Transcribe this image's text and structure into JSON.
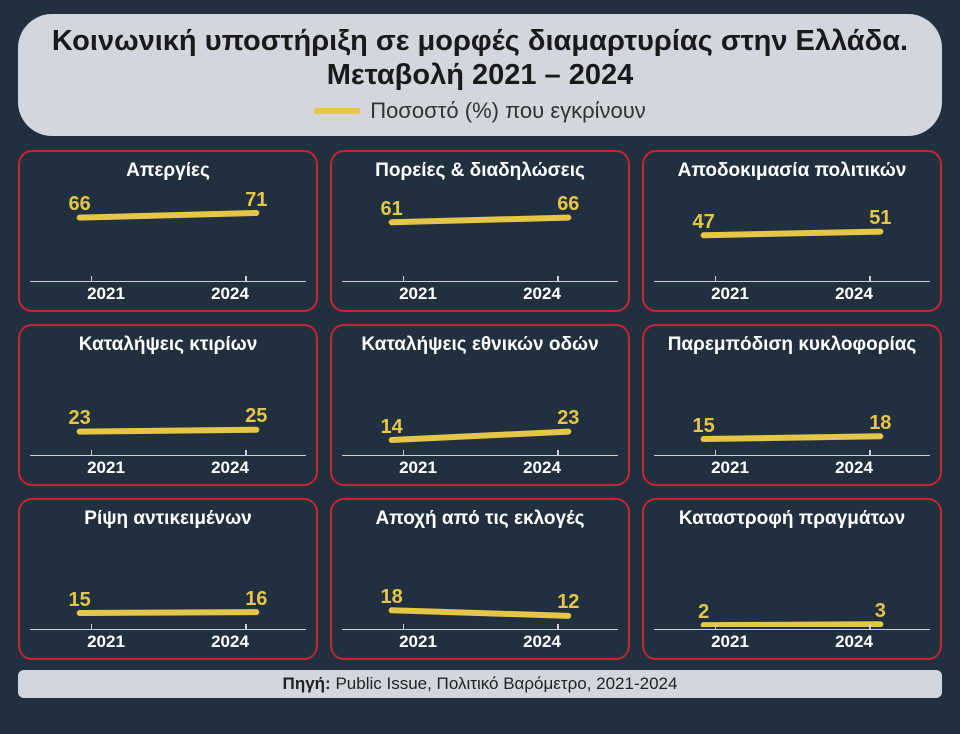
{
  "background_color": "#21303f",
  "title": "Κοινωνική υποστήριξη σε μορφές διαμαρτυρίας στην Ελλάδα. Μεταβολή 2021 – 2024",
  "title_fontsize": 29,
  "title_color": "#1a1a1a",
  "header_pill_bg": "#d4d6dd",
  "legend_label": "Ποσοστό (%) που εγκρίνουν",
  "legend_fontsize": 22,
  "line_color": "#e6c647",
  "line_width": 6,
  "panel_border_color": "#c1272d",
  "panel_border_radius": 14,
  "panel_title_color": "#ffffff",
  "value_label_color": "#e6c647",
  "value_label_fontsize": 20,
  "axis_label_color": "#ffffff",
  "axis_tick_color": "#cfd1d6",
  "grid_cols": 3,
  "grid_rows": 3,
  "y_domain": [
    0,
    100
  ],
  "x_labels": [
    "2021",
    "2024"
  ],
  "panels": [
    {
      "title": "Απεργίες",
      "values": [
        66,
        71
      ]
    },
    {
      "title": "Πορείες & διαδηλώσεις",
      "values": [
        61,
        66
      ]
    },
    {
      "title": "Αποδοκιμασία πολιτικών",
      "values": [
        47,
        51
      ]
    },
    {
      "title": "Καταλήψεις κτιρίων",
      "values": [
        23,
        25
      ]
    },
    {
      "title": "Καταλήψεις εθνικών οδών",
      "values": [
        14,
        23
      ]
    },
    {
      "title": "Παρεμπόδιση κυκλοφορίας",
      "values": [
        15,
        18
      ]
    },
    {
      "title": "Ρίψη αντικειμένων",
      "values": [
        15,
        16
      ]
    },
    {
      "title": "Αποχή από τις εκλογές",
      "values": [
        18,
        12
      ]
    },
    {
      "title": "Καταστροφή πραγμάτων",
      "values": [
        2,
        3
      ]
    }
  ],
  "source_label": "Πηγή:",
  "source_text": " Public Issue, Πολιτικό Βαρόμετρο, 2021-2024",
  "footer_bg": "#d4d6dd"
}
